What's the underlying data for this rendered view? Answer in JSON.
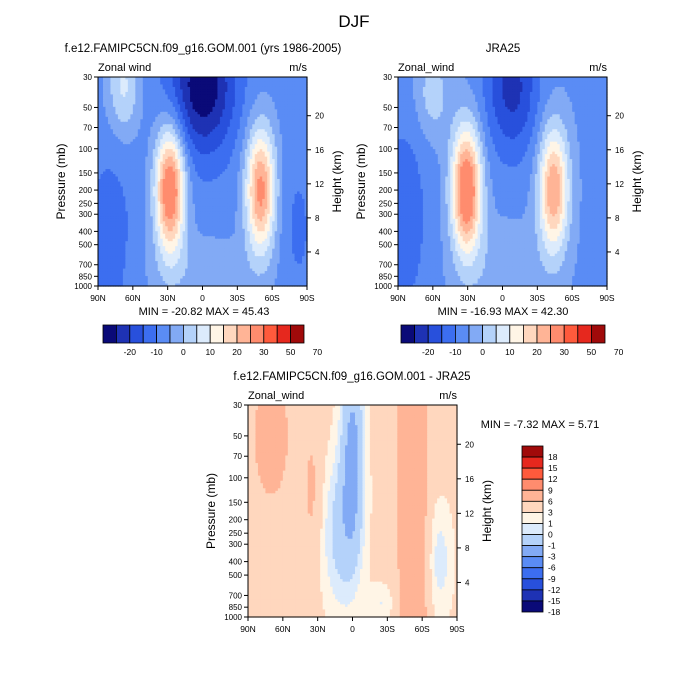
{
  "figure": {
    "title": "DJF"
  },
  "colormap_fill": [
    "#0a0a78",
    "#1e32b4",
    "#2850dc",
    "#3c6ef0",
    "#5a8cf5",
    "#82aaf5",
    "#b4d2fa",
    "#dcebfc",
    "#fff5e6",
    "#ffd7be",
    "#ffb496",
    "#ff8c6e",
    "#ff5a3c",
    "#e6281e",
    "#a00a0a"
  ],
  "diff_colormap_fill": [
    "#0a0a78",
    "#1e32b4",
    "#2850dc",
    "#3c6ef0",
    "#5a8cf5",
    "#82aaf5",
    "#b4d2fa",
    "#dcebfc",
    "#fff5e6",
    "#ffd7be",
    "#ffb496",
    "#ff8c6e",
    "#ff5a3c",
    "#e6281e",
    "#a00a0a"
  ],
  "chart_data": [
    {
      "type": "heatmap",
      "title": "f.e12.FAMIPC5CN.f09_g16.GOM.001 (yrs 1986-2005)",
      "left_label": "Zonal wind",
      "right_label": "m/s",
      "ylabel": "Pressure (mb)",
      "y2label": "Height (km)",
      "x_ticks": [
        "90N",
        "60N",
        "30N",
        "0",
        "30S",
        "60S",
        "90S"
      ],
      "y_ticks": [
        "30",
        "50",
        "70",
        "100",
        "150",
        "200",
        "250",
        "300",
        "400",
        "500",
        "700",
        "850",
        "1000"
      ],
      "y2_ticks": [
        "20",
        "16",
        "12",
        "8",
        "4"
      ],
      "xlim": [
        90,
        -90
      ],
      "ylim": [
        1000,
        30
      ],
      "stats": "MIN = -20.82  MAX =  45.43",
      "min": -20.82,
      "max": 45.43,
      "colorbar_levels": [
        -25,
        -20,
        -15,
        -10,
        -5,
        0,
        5,
        10,
        15,
        20,
        25,
        30,
        40,
        50,
        60,
        70
      ],
      "colorbar_labels": [
        "-20",
        "-10",
        "0",
        "10",
        "20",
        "30",
        "50",
        "70"
      ]
    },
    {
      "type": "heatmap",
      "title": "JRA25",
      "left_label": "Zonal_wind",
      "right_label": "m/s",
      "ylabel": "Pressure (mb)",
      "y2label": "Height (km)",
      "x_ticks": [
        "90N",
        "60N",
        "30N",
        "0",
        "30S",
        "60S",
        "90S"
      ],
      "y_ticks": [
        "30",
        "50",
        "70",
        "100",
        "150",
        "200",
        "250",
        "300",
        "400",
        "500",
        "700",
        "850",
        "1000"
      ],
      "y2_ticks": [
        "20",
        "16",
        "12",
        "8",
        "4"
      ],
      "xlim": [
        90,
        -90
      ],
      "ylim": [
        1000,
        30
      ],
      "stats": "MIN = -16.93  MAX =  42.30",
      "min": -16.93,
      "max": 42.3,
      "colorbar_levels": [
        -25,
        -20,
        -15,
        -10,
        -5,
        0,
        5,
        10,
        15,
        20,
        25,
        30,
        40,
        50,
        60,
        70
      ],
      "colorbar_labels": [
        "-20",
        "-10",
        "0",
        "10",
        "20",
        "30",
        "50",
        "70"
      ]
    },
    {
      "type": "heatmap",
      "title": "f.e12.FAMIPC5CN.f09_g16.GOM.001 - JRA25",
      "left_label": "Zonal_wind",
      "right_label": "m/s",
      "ylabel": "Pressure (mb)",
      "y2label": "Height (km)",
      "x_ticks": [
        "90N",
        "60N",
        "30N",
        "0",
        "30S",
        "60S",
        "90S"
      ],
      "y_ticks": [
        "30",
        "50",
        "70",
        "100",
        "150",
        "200",
        "250",
        "300",
        "400",
        "500",
        "700",
        "850",
        "1000"
      ],
      "y2_ticks": [
        "20",
        "16",
        "12",
        "8",
        "4"
      ],
      "xlim": [
        90,
        -90
      ],
      "ylim": [
        1000,
        30
      ],
      "stats": "MIN = -7.32  MAX =   5.71",
      "min": -7.32,
      "max": 5.71,
      "colorbar_levels": [
        -21,
        -18,
        -15,
        -12,
        -9,
        -6,
        -3,
        -1,
        0,
        1,
        3,
        6,
        9,
        12,
        15,
        18,
        21
      ],
      "colorbar_labels": [
        "18",
        "15",
        "12",
        "9",
        "6",
        "3",
        "1",
        "0",
        "-1",
        "-3",
        "-6",
        "-9",
        "-12",
        "-15",
        "-18"
      ]
    }
  ]
}
